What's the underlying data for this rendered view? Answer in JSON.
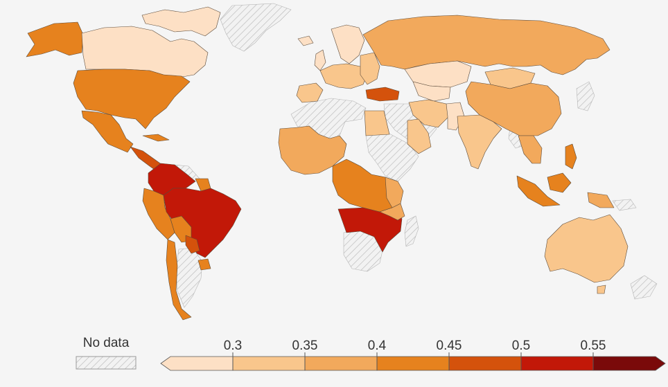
{
  "map": {
    "type": "choropleth-world"
  },
  "legend": {
    "no_data_label": "No data",
    "tick_labels": [
      "0.3",
      "0.35",
      "0.4",
      "0.45",
      "0.5",
      "0.55"
    ],
    "bins": [
      {
        "color": "#fde0c5"
      },
      {
        "color": "#f9c68c"
      },
      {
        "color": "#f2a95c"
      },
      {
        "color": "#e6821e"
      },
      {
        "color": "#d4520c"
      },
      {
        "color": "#c21808"
      },
      {
        "color": "#7a0a0a"
      }
    ],
    "open_ended_left": true,
    "open_ended_right": true
  },
  "colors": {
    "background": "#f5f5f5",
    "no_data_hatch": "#bdbdbd",
    "border": "#5a4a3a"
  }
}
